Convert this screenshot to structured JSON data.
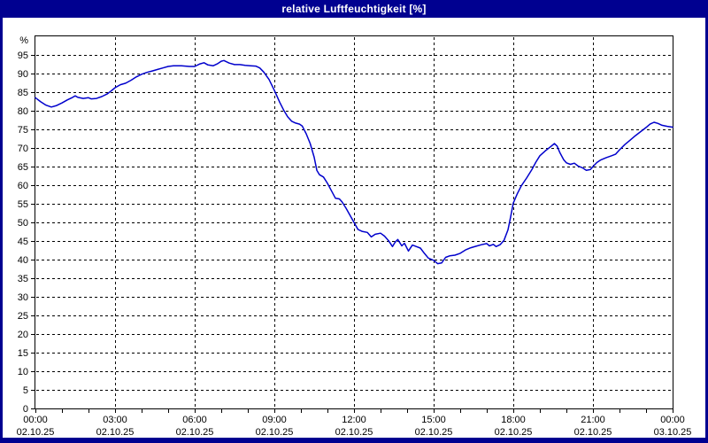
{
  "window": {
    "title": "relative Luftfeuchtigkeit [%]",
    "frame_color": "#000090",
    "titlebar_color": "#000090",
    "title_text_color": "#FFFFFF",
    "background_color": "#FFFFFF"
  },
  "chart_data": {
    "type": "line",
    "title": "relative Luftfeuchtigkeit [%]",
    "xlabel": "",
    "ylabel": "%",
    "grid": "dashed",
    "legend_position": "none",
    "line_color": "#0000CC",
    "grid_color": "#000000",
    "axis_color": "#000000",
    "y_axis": {
      "min": 0,
      "max": 100,
      "tick_step": 5,
      "unit": "%",
      "tick_labels": [
        "0",
        "5",
        "10",
        "15",
        "20",
        "25",
        "30",
        "35",
        "40",
        "45",
        "50",
        "55",
        "60",
        "65",
        "70",
        "75",
        "80",
        "85",
        "90",
        "95"
      ]
    },
    "x_axis": {
      "min_hour": 0,
      "max_hour": 24,
      "minor_tick_every_hours": 1,
      "major_tick_every_hours": 3,
      "ticks": [
        {
          "hour": 0,
          "time": "00:00",
          "date": "02.10.25"
        },
        {
          "hour": 3,
          "time": "03:00",
          "date": "02.10.25"
        },
        {
          "hour": 6,
          "time": "06:00",
          "date": "02.10.25"
        },
        {
          "hour": 9,
          "time": "09:00",
          "date": "02.10.25"
        },
        {
          "hour": 12,
          "time": "12:00",
          "date": "02.10.25"
        },
        {
          "hour": 15,
          "time": "15:00",
          "date": "02.10.25"
        },
        {
          "hour": 18,
          "time": "18:00",
          "date": "02.10.25"
        },
        {
          "hour": 21,
          "time": "21:00",
          "date": "02.10.25"
        },
        {
          "hour": 24,
          "time": "00:00",
          "date": "03.10.25"
        }
      ]
    },
    "series": [
      {
        "name": "relative Luftfeuchtigkeit",
        "unit": "%",
        "color": "#0000CC",
        "points": [
          [
            0.0,
            83.5
          ],
          [
            0.2,
            82.4
          ],
          [
            0.4,
            81.5
          ],
          [
            0.6,
            81.0
          ],
          [
            0.8,
            81.4
          ],
          [
            1.0,
            82.1
          ],
          [
            1.2,
            82.9
          ],
          [
            1.4,
            83.6
          ],
          [
            1.5,
            84.0
          ],
          [
            1.6,
            83.6
          ],
          [
            1.8,
            83.3
          ],
          [
            2.0,
            83.5
          ],
          [
            2.1,
            83.2
          ],
          [
            2.3,
            83.3
          ],
          [
            2.5,
            83.8
          ],
          [
            2.7,
            84.5
          ],
          [
            2.85,
            85.3
          ],
          [
            3.0,
            86.2
          ],
          [
            3.2,
            87.0
          ],
          [
            3.4,
            87.4
          ],
          [
            3.6,
            88.2
          ],
          [
            3.8,
            89.1
          ],
          [
            4.0,
            89.8
          ],
          [
            4.2,
            90.3
          ],
          [
            4.4,
            90.7
          ],
          [
            4.6,
            91.1
          ],
          [
            4.8,
            91.5
          ],
          [
            5.0,
            91.9
          ],
          [
            5.2,
            92.1
          ],
          [
            5.5,
            92.1
          ],
          [
            5.8,
            91.9
          ],
          [
            6.0,
            91.9
          ],
          [
            6.2,
            92.6
          ],
          [
            6.35,
            92.9
          ],
          [
            6.5,
            92.3
          ],
          [
            6.7,
            92.1
          ],
          [
            6.85,
            92.6
          ],
          [
            7.0,
            93.3
          ],
          [
            7.1,
            93.5
          ],
          [
            7.3,
            92.8
          ],
          [
            7.5,
            92.4
          ],
          [
            7.7,
            92.4
          ],
          [
            7.9,
            92.2
          ],
          [
            8.1,
            92.1
          ],
          [
            8.3,
            92.0
          ],
          [
            8.45,
            91.5
          ],
          [
            8.6,
            90.4
          ],
          [
            8.8,
            88.4
          ],
          [
            9.0,
            85.5
          ],
          [
            9.2,
            82.3
          ],
          [
            9.35,
            80.2
          ],
          [
            9.5,
            78.4
          ],
          [
            9.65,
            77.2
          ],
          [
            9.8,
            76.7
          ],
          [
            9.95,
            76.4
          ],
          [
            10.05,
            75.9
          ],
          [
            10.2,
            73.8
          ],
          [
            10.35,
            71.2
          ],
          [
            10.5,
            67.5
          ],
          [
            10.6,
            64.0
          ],
          [
            10.7,
            62.8
          ],
          [
            10.85,
            62.2
          ],
          [
            11.0,
            60.5
          ],
          [
            11.15,
            58.5
          ],
          [
            11.3,
            56.5
          ],
          [
            11.45,
            56.3
          ],
          [
            11.55,
            55.5
          ],
          [
            11.7,
            53.8
          ],
          [
            11.85,
            51.9
          ],
          [
            12.0,
            50.0
          ],
          [
            12.15,
            48.1
          ],
          [
            12.3,
            47.6
          ],
          [
            12.5,
            47.3
          ],
          [
            12.65,
            46.1
          ],
          [
            12.8,
            46.8
          ],
          [
            13.0,
            47.1
          ],
          [
            13.15,
            46.3
          ],
          [
            13.3,
            45.1
          ],
          [
            13.45,
            43.5
          ],
          [
            13.55,
            44.7
          ],
          [
            13.65,
            45.4
          ],
          [
            13.8,
            43.7
          ],
          [
            13.9,
            44.4
          ],
          [
            14.05,
            42.3
          ],
          [
            14.2,
            43.9
          ],
          [
            14.35,
            43.5
          ],
          [
            14.5,
            43.1
          ],
          [
            14.65,
            41.7
          ],
          [
            14.8,
            40.4
          ],
          [
            15.0,
            39.8
          ],
          [
            15.15,
            38.9
          ],
          [
            15.3,
            39.1
          ],
          [
            15.45,
            40.6
          ],
          [
            15.6,
            41.0
          ],
          [
            15.8,
            41.2
          ],
          [
            16.0,
            41.7
          ],
          [
            16.2,
            42.6
          ],
          [
            16.4,
            43.2
          ],
          [
            16.6,
            43.6
          ],
          [
            16.8,
            44.0
          ],
          [
            17.0,
            44.3
          ],
          [
            17.1,
            43.7
          ],
          [
            17.25,
            44.1
          ],
          [
            17.35,
            43.5
          ],
          [
            17.5,
            44.0
          ],
          [
            17.65,
            45.2
          ],
          [
            17.8,
            48.0
          ],
          [
            17.9,
            51.5
          ],
          [
            18.0,
            55.2
          ],
          [
            18.15,
            57.7
          ],
          [
            18.3,
            59.8
          ],
          [
            18.5,
            61.9
          ],
          [
            18.7,
            64.2
          ],
          [
            18.85,
            66.2
          ],
          [
            19.0,
            67.9
          ],
          [
            19.2,
            69.2
          ],
          [
            19.4,
            70.3
          ],
          [
            19.55,
            71.2
          ],
          [
            19.65,
            70.5
          ],
          [
            19.75,
            68.8
          ],
          [
            19.9,
            66.8
          ],
          [
            20.0,
            66.0
          ],
          [
            20.15,
            65.6
          ],
          [
            20.3,
            65.9
          ],
          [
            20.45,
            65.1
          ],
          [
            20.6,
            64.7
          ],
          [
            20.75,
            64.0
          ],
          [
            20.9,
            64.2
          ],
          [
            21.0,
            65.0
          ],
          [
            21.15,
            66.1
          ],
          [
            21.3,
            66.8
          ],
          [
            21.5,
            67.4
          ],
          [
            21.7,
            67.9
          ],
          [
            21.85,
            68.3
          ],
          [
            22.0,
            69.5
          ],
          [
            22.2,
            70.9
          ],
          [
            22.4,
            72.1
          ],
          [
            22.6,
            73.3
          ],
          [
            22.8,
            74.4
          ],
          [
            23.0,
            75.5
          ],
          [
            23.15,
            76.4
          ],
          [
            23.3,
            76.9
          ],
          [
            23.45,
            76.6
          ],
          [
            23.6,
            76.1
          ],
          [
            23.8,
            75.8
          ],
          [
            24.0,
            75.6
          ]
        ]
      }
    ]
  }
}
